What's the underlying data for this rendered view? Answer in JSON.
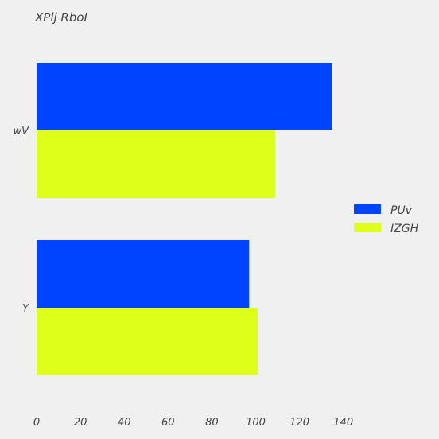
{
  "chart_data": {
    "type": "bar",
    "orientation": "horizontal",
    "title": "XPlj RboI",
    "xlabel": "",
    "ylabel": "",
    "categories": [
      "wV",
      "Y"
    ],
    "series": [
      {
        "name": "PUv",
        "color": "#0044ff",
        "values": [
          135,
          97
        ]
      },
      {
        "name": "IZGH",
        "color": "#ddff1a",
        "values": [
          109,
          101
        ]
      }
    ],
    "xlim": [
      0,
      150
    ],
    "xticks": [
      0,
      20,
      40,
      60,
      80,
      100,
      120,
      140
    ],
    "grid": false,
    "legend_position": "right"
  }
}
